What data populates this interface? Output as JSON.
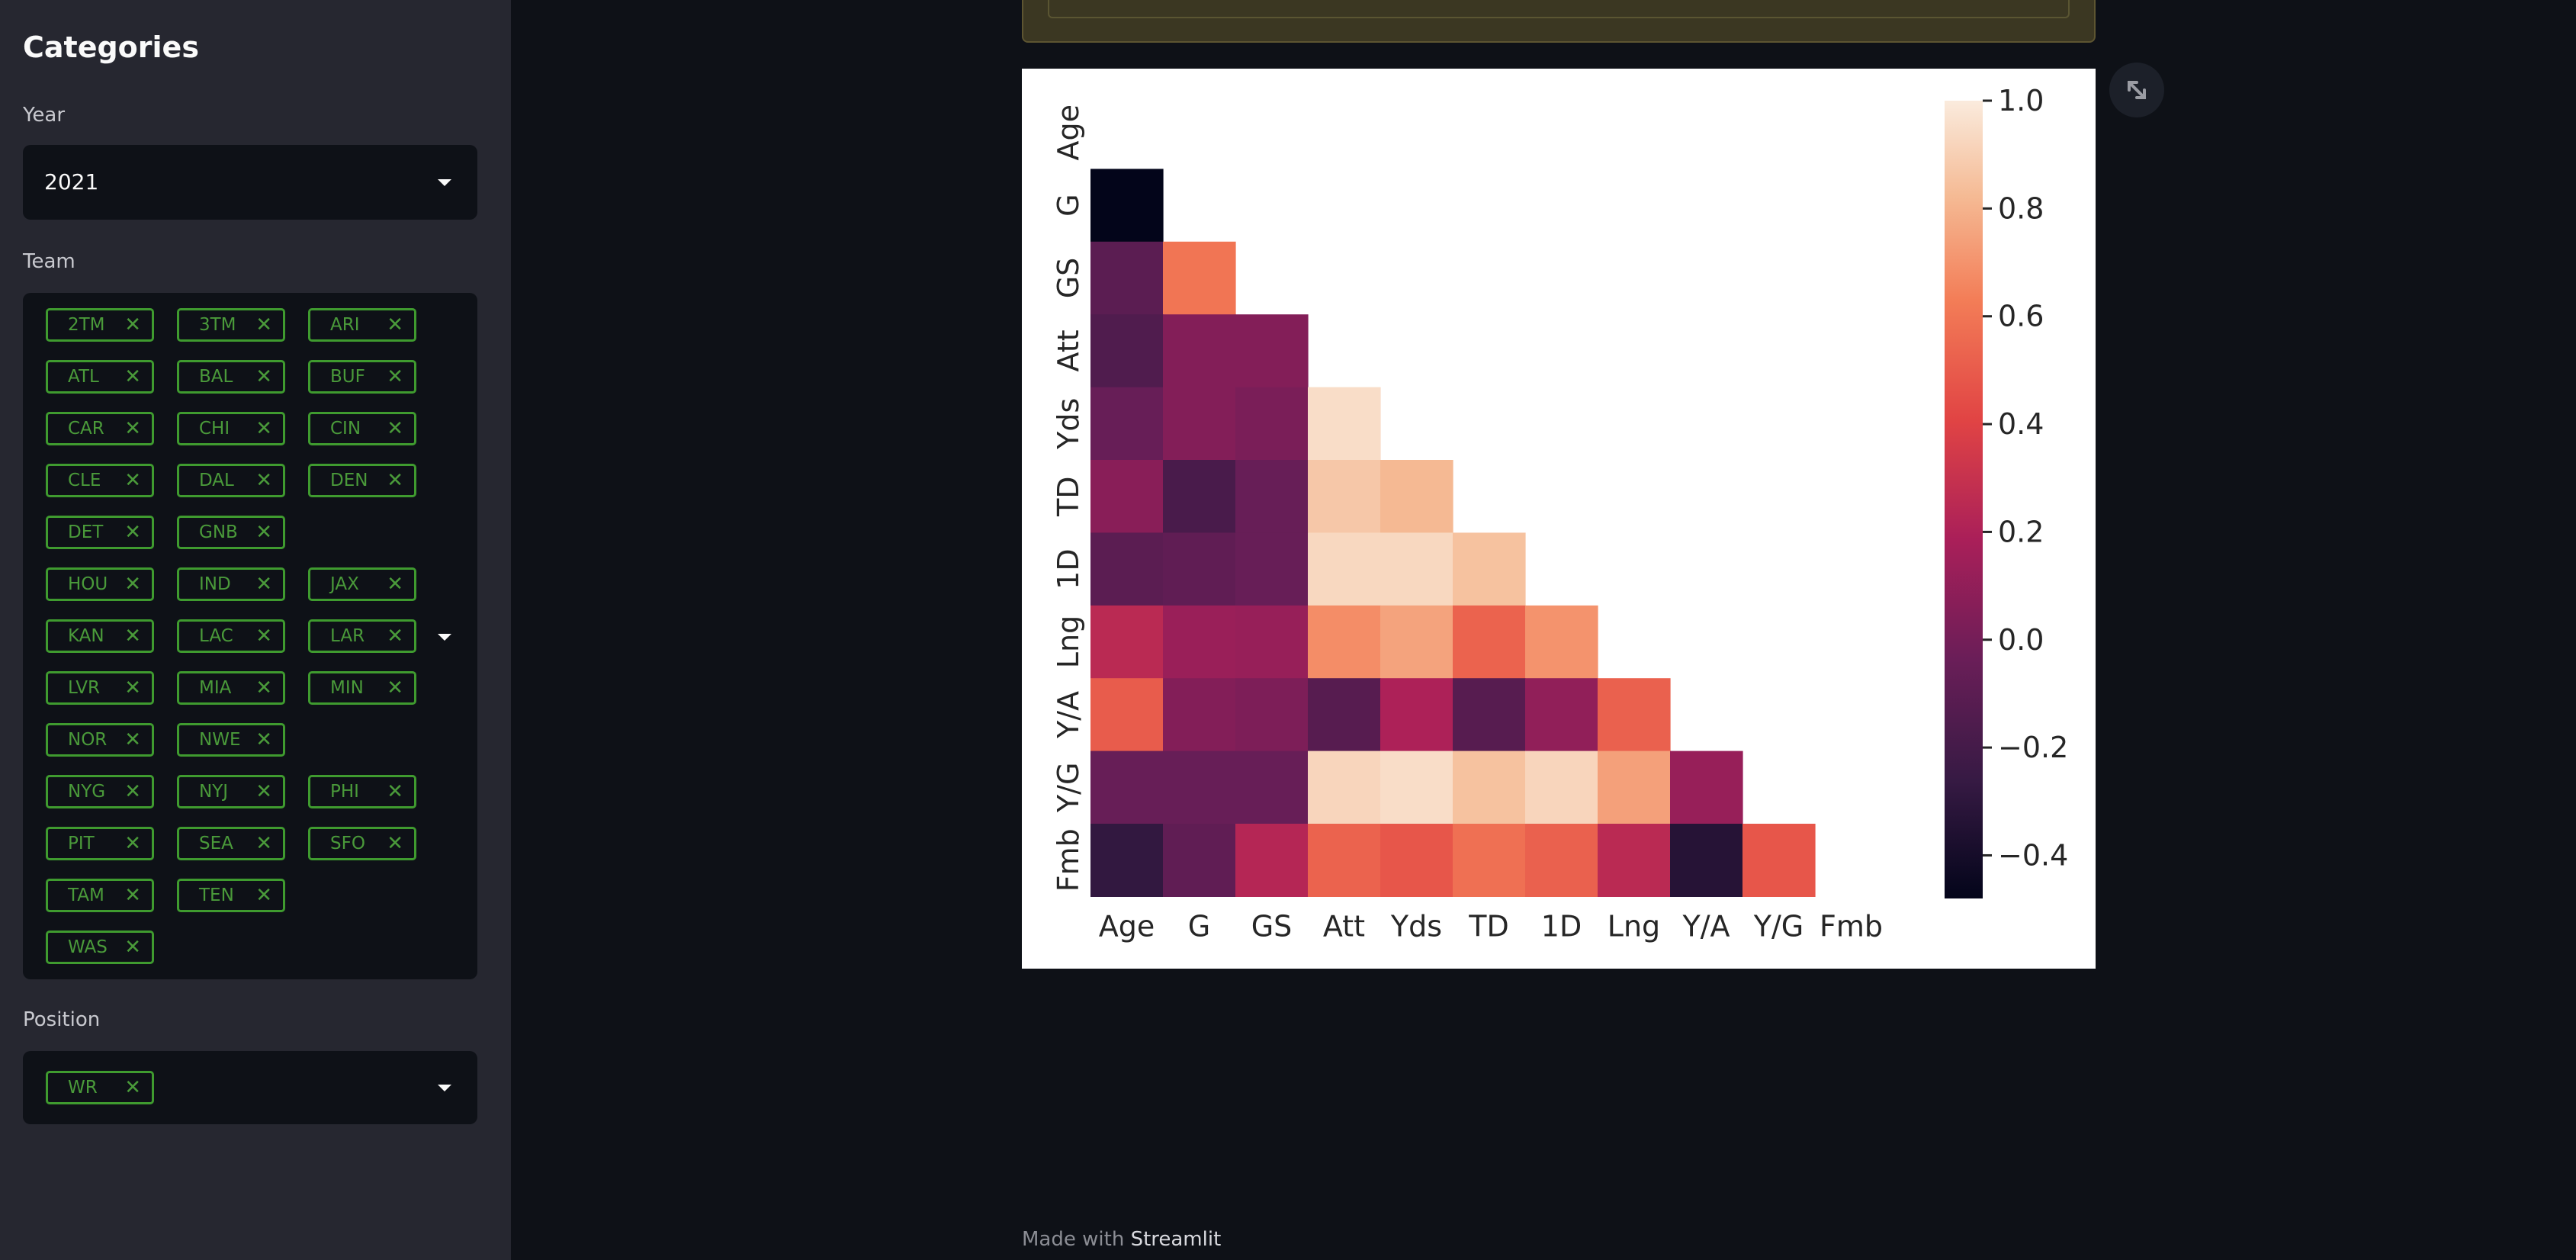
{
  "sidebar": {
    "title": "Categories",
    "year_label": "Year",
    "year_value": "2021",
    "team_label": "Team",
    "teams": [
      "2TM",
      "3TM",
      "ARI",
      "ATL",
      "BAL",
      "BUF",
      "CAR",
      "CHI",
      "CIN",
      "CLE",
      "DAL",
      "DEN",
      "DET",
      "GNB",
      "HOU",
      "IND",
      "JAX",
      "KAN",
      "LAC",
      "LAR",
      "LVR",
      "MIA",
      "MIN",
      "NOR",
      "NWE",
      "NYG",
      "NYJ",
      "PHI",
      "PIT",
      "SEA",
      "SFO",
      "TAM",
      "TEN",
      "WAS"
    ],
    "position_label": "Position",
    "positions": [
      "WR"
    ]
  },
  "footer": {
    "prefix": "Made with ",
    "brand": "Streamlit"
  },
  "chart_data": {
    "type": "heatmap",
    "title": "",
    "variables": [
      "Age",
      "G",
      "GS",
      "Att",
      "Yds",
      "TD",
      "1D",
      "Lng",
      "Y/A",
      "Y/G",
      "Fmb"
    ],
    "mask": "upper triangle including diagonal",
    "values": [
      [
        null,
        null,
        null,
        null,
        null,
        null,
        null,
        null,
        null,
        null,
        null
      ],
      [
        -0.48,
        null,
        null,
        null,
        null,
        null,
        null,
        null,
        null,
        null,
        null
      ],
      [
        -0.1,
        0.6,
        null,
        null,
        null,
        null,
        null,
        null,
        null,
        null,
        null
      ],
      [
        -0.15,
        0.05,
        0.05,
        null,
        null,
        null,
        null,
        null,
        null,
        null,
        null
      ],
      [
        -0.05,
        0.05,
        0.02,
        0.95,
        null,
        null,
        null,
        null,
        null,
        null,
        null
      ],
      [
        0.07,
        -0.18,
        -0.05,
        0.87,
        0.82,
        null,
        null,
        null,
        null,
        null,
        null
      ],
      [
        -0.1,
        -0.08,
        -0.05,
        0.93,
        0.93,
        0.85,
        null,
        null,
        null,
        null,
        null
      ],
      [
        0.25,
        0.13,
        0.12,
        0.68,
        0.75,
        0.53,
        0.7,
        null,
        null,
        null,
        null
      ],
      [
        0.5,
        0.05,
        0.03,
        -0.12,
        0.2,
        -0.12,
        0.1,
        0.52,
        null,
        null,
        null
      ],
      [
        -0.05,
        -0.05,
        -0.05,
        0.92,
        0.95,
        0.85,
        0.92,
        0.74,
        0.12,
        null,
        null
      ],
      [
        -0.28,
        -0.08,
        0.23,
        0.53,
        0.48,
        0.58,
        0.52,
        0.25,
        -0.33,
        0.48,
        null
      ]
    ],
    "colorbar": {
      "min": -0.48,
      "max": 1.0,
      "ticks": [
        "1.0",
        "0.8",
        "0.6",
        "0.4",
        "0.2",
        "0.0",
        "−0.2",
        "−0.4"
      ]
    },
    "colormap": "rocket"
  }
}
